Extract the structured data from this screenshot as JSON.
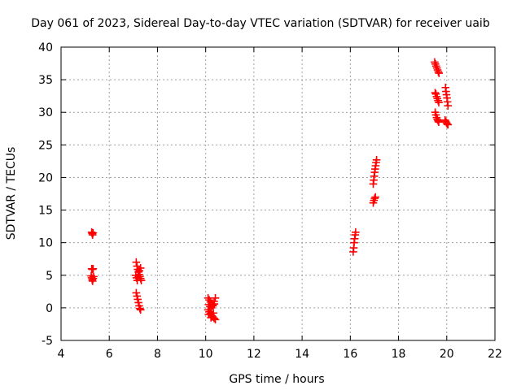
{
  "chart_data": {
    "type": "scatter",
    "title": "Day 061 of 2023, Sidereal Day-to-day VTEC variation (SDTVAR) for receiver uaib",
    "xlabel": "GPS time / hours",
    "ylabel": "SDTVAR / TECUs",
    "xlim": [
      4,
      22
    ],
    "ylim": [
      -5,
      40
    ],
    "xticks": [
      "4",
      "6",
      "8",
      "10",
      "12",
      "14",
      "16",
      "18",
      "20",
      "22"
    ],
    "yticks": [
      "-5",
      "0",
      "5",
      "10",
      "15",
      "20",
      "25",
      "30",
      "35",
      "40"
    ],
    "grid": true,
    "marker": "plus",
    "series": [
      {
        "name": "SDTVAR",
        "color": "#ff0000",
        "points": [
          [
            5.27,
            11.6
          ],
          [
            5.29,
            11.4
          ],
          [
            5.31,
            11.2
          ],
          [
            5.33,
            11.5
          ],
          [
            5.27,
            6.0
          ],
          [
            5.3,
            5.9
          ],
          [
            5.33,
            6.0
          ],
          [
            5.25,
            4.9
          ],
          [
            5.27,
            4.6
          ],
          [
            5.29,
            4.3
          ],
          [
            5.31,
            4.1
          ],
          [
            5.33,
            4.5
          ],
          [
            5.35,
            4.8
          ],
          [
            7.12,
            7.0
          ],
          [
            7.15,
            6.4
          ],
          [
            7.18,
            5.9
          ],
          [
            7.21,
            5.5
          ],
          [
            7.24,
            5.1
          ],
          [
            7.27,
            4.8
          ],
          [
            7.3,
            4.5
          ],
          [
            7.33,
            4.2
          ],
          [
            7.1,
            5.0
          ],
          [
            7.13,
            4.6
          ],
          [
            7.16,
            4.2
          ],
          [
            7.2,
            4.7
          ],
          [
            7.25,
            5.7
          ],
          [
            7.3,
            6.1
          ],
          [
            7.12,
            2.3
          ],
          [
            7.15,
            1.8
          ],
          [
            7.18,
            1.3
          ],
          [
            7.21,
            0.8
          ],
          [
            7.24,
            0.3
          ],
          [
            7.27,
            -0.1
          ],
          [
            7.3,
            -0.3
          ],
          [
            10.1,
            1.5
          ],
          [
            10.15,
            1.2
          ],
          [
            10.2,
            0.9
          ],
          [
            10.25,
            0.6
          ],
          [
            10.3,
            0.4
          ],
          [
            10.35,
            1.0
          ],
          [
            10.4,
            1.5
          ],
          [
            10.12,
            0.5
          ],
          [
            10.18,
            0.2
          ],
          [
            10.24,
            0.0
          ],
          [
            10.3,
            0.3
          ],
          [
            10.36,
            0.6
          ],
          [
            10.1,
            -0.3
          ],
          [
            10.15,
            -0.6
          ],
          [
            10.2,
            -0.9
          ],
          [
            10.25,
            -1.2
          ],
          [
            10.3,
            -1.4
          ],
          [
            10.35,
            -1.6
          ],
          [
            10.4,
            -1.8
          ],
          [
            10.12,
            -1.0
          ],
          [
            10.22,
            -1.5
          ],
          [
            10.32,
            -0.8
          ],
          [
            16.12,
            8.6
          ],
          [
            16.14,
            9.2
          ],
          [
            16.16,
            10.0
          ],
          [
            16.18,
            10.6
          ],
          [
            16.2,
            11.2
          ],
          [
            16.22,
            11.6
          ],
          [
            16.95,
            16.1
          ],
          [
            16.98,
            16.5
          ],
          [
            17.01,
            16.8
          ],
          [
            17.04,
            17.0
          ],
          [
            16.95,
            19.0
          ],
          [
            16.97,
            19.6
          ],
          [
            16.99,
            20.2
          ],
          [
            17.01,
            20.8
          ],
          [
            17.03,
            21.3
          ],
          [
            17.05,
            21.8
          ],
          [
            17.07,
            22.3
          ],
          [
            17.09,
            22.7
          ],
          [
            19.5,
            37.7
          ],
          [
            19.53,
            37.4
          ],
          [
            19.56,
            37.1
          ],
          [
            19.59,
            36.8
          ],
          [
            19.62,
            36.5
          ],
          [
            19.65,
            36.2
          ],
          [
            19.68,
            36.0
          ],
          [
            19.52,
            33.0
          ],
          [
            19.55,
            32.8
          ],
          [
            19.58,
            32.4
          ],
          [
            19.61,
            32.1
          ],
          [
            19.64,
            31.8
          ],
          [
            19.67,
            31.5
          ],
          [
            19.52,
            30.0
          ],
          [
            19.55,
            29.6
          ],
          [
            19.58,
            29.2
          ],
          [
            19.61,
            28.9
          ],
          [
            19.64,
            28.7
          ],
          [
            19.67,
            28.5
          ],
          [
            19.95,
            33.8
          ],
          [
            19.97,
            33.2
          ],
          [
            19.99,
            32.7
          ],
          [
            20.01,
            32.2
          ],
          [
            20.03,
            31.6
          ],
          [
            20.05,
            31.0
          ],
          [
            19.93,
            28.8
          ],
          [
            19.96,
            28.6
          ],
          [
            19.99,
            28.4
          ],
          [
            20.02,
            28.2
          ],
          [
            20.05,
            28.1
          ]
        ]
      }
    ]
  }
}
